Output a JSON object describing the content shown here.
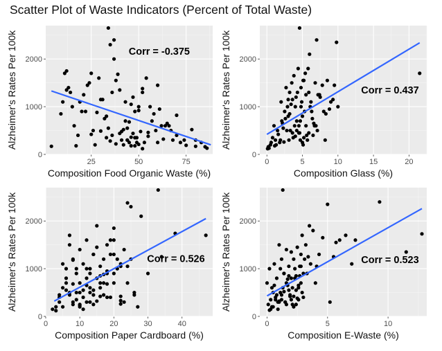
{
  "title": "Scatter Plot of Waste Indicators (Percent of Total Waste)",
  "chart_data": [
    {
      "type": "scatter",
      "xlabel": "Composition Food Organic Waste (%)",
      "ylabel": "Alzheimer's Rates Per 100k",
      "annotation": "Corr = -0.375",
      "xlim": [
        1,
        89
      ],
      "ylim": [
        0,
        2700
      ],
      "xticks": [
        25,
        50,
        75
      ],
      "yticks": [
        0,
        1000,
        2000
      ],
      "grid": true,
      "fit": {
        "x": [
          4,
          88
        ],
        "y": [
          1330,
          200
        ],
        "color": "#3366ff"
      },
      "x": [
        4,
        10,
        12,
        13,
        14,
        15,
        17,
        19,
        21,
        22,
        23,
        25,
        26,
        27,
        29,
        31,
        33,
        34,
        35,
        36,
        37,
        38,
        40,
        41,
        42,
        43,
        44,
        45,
        46,
        47,
        48,
        49,
        50,
        52,
        54,
        57,
        60,
        62,
        65,
        68,
        72,
        75,
        78,
        80,
        83,
        86,
        9,
        11,
        16,
        18,
        24,
        28,
        30,
        32,
        34,
        36,
        38,
        39,
        41,
        43,
        44,
        45,
        46,
        47,
        48,
        49,
        50,
        51,
        52,
        53,
        55,
        56,
        58,
        59,
        61,
        63,
        66,
        70,
        12,
        20,
        25,
        30,
        33,
        35,
        37,
        40,
        42,
        44,
        46,
        48,
        50,
        52,
        55,
        60,
        64,
        67,
        70,
        74,
        80,
        85
      ],
      "y": [
        170,
        1100,
        1750,
        1400,
        1300,
        1000,
        180,
        1100,
        1250,
        900,
        1450,
        1700,
        500,
        200,
        1600,
        1150,
        800,
        2650,
        2300,
        400,
        2400,
        1550,
        1350,
        300,
        200,
        700,
        550,
        250,
        1050,
        1200,
        900,
        350,
        1000,
        1300,
        1600,
        700,
        1450,
        600,
        650,
        300,
        250,
        190,
        520,
        300,
        250,
        130,
        850,
        1700,
        600,
        400,
        1500,
        880,
        1150,
        750,
        550,
        1300,
        220,
        1680,
        480,
        1100,
        300,
        680,
        360,
        440,
        180,
        250,
        920,
        480,
        1380,
        250,
        460,
        1000,
        850,
        500,
        950,
        320,
        600,
        820,
        1350,
        900,
        420,
        490,
        350,
        280,
        2000,
        440,
        520,
        300,
        180,
        350,
        210,
        120,
        380,
        250,
        600,
        500,
        400,
        300,
        170,
        160
      ]
    },
    {
      "type": "scatter",
      "xlabel": "Composition Glass (%)",
      "ylabel": "Alzheimer's Rates Per 100k",
      "annotation": "Corr = 0.437",
      "xlim": [
        -1,
        22.5
      ],
      "ylim": [
        0,
        2700
      ],
      "xticks": [
        0,
        5,
        10,
        15,
        20
      ],
      "yticks": [
        0,
        1000,
        2000
      ],
      "grid": true,
      "fit": {
        "x": [
          0,
          21.5
        ],
        "y": [
          420,
          2340
        ],
        "color": "#3366ff"
      },
      "x": [
        0.1,
        0.2,
        0.5,
        0.8,
        1.0,
        1.2,
        1.5,
        1.8,
        2.0,
        2.2,
        2.5,
        2.7,
        3.0,
        3.2,
        3.3,
        3.5,
        3.7,
        3.8,
        4.0,
        4.1,
        4.2,
        4.4,
        4.5,
        4.6,
        4.7,
        4.8,
        5.0,
        5.1,
        5.2,
        5.4,
        5.5,
        5.7,
        5.9,
        6.0,
        6.3,
        6.5,
        6.8,
        7.0,
        7.5,
        8.0,
        8.5,
        9.0,
        9.8,
        10.0,
        21.5,
        0.3,
        1.1,
        1.6,
        2.1,
        2.4,
        2.9,
        3.1,
        3.6,
        3.9,
        4.3,
        4.9,
        5.3,
        5.6,
        6.1,
        6.6,
        7.2,
        7.8,
        8.2,
        9.3,
        1.3,
        2.6,
        3.4,
        4.6,
        5.0,
        5.8,
        6.2,
        6.9,
        7.4,
        8.8,
        9.5,
        0.6,
        1.9,
        2.8,
        3.2,
        4.0,
        4.8,
        5.5,
        6.4,
        7.1,
        8.3,
        3.0,
        3.6,
        4.2,
        4.7,
        5.2,
        5.9,
        6.7,
        2.3,
        4.5,
        5.1
      ],
      "y": [
        120,
        160,
        200,
        350,
        600,
        300,
        500,
        250,
        1100,
        650,
        900,
        1400,
        800,
        1300,
        500,
        1500,
        350,
        1650,
        1000,
        1200,
        700,
        1800,
        450,
        2650,
        300,
        1400,
        800,
        200,
        1550,
        1700,
        600,
        300,
        1300,
        2100,
        900,
        400,
        1500,
        2400,
        1200,
        900,
        1550,
        1100,
        2350,
        1000,
        1700,
        130,
        180,
        420,
        700,
        260,
        1000,
        300,
        1150,
        600,
        1300,
        1100,
        900,
        400,
        1000,
        650,
        1250,
        1450,
        300,
        1150,
        200,
        750,
        1050,
        450,
        250,
        1800,
        1100,
        600,
        1250,
        950,
        1450,
        250,
        300,
        500,
        850,
        380,
        1000,
        1250,
        750,
        500,
        850,
        1150,
        450,
        500,
        700,
        350,
        450,
        600,
        550,
        600,
        1550
      ]
    },
    {
      "type": "scatter",
      "xlabel": "Composition Paper Cardboard (%)",
      "ylabel": "Alzheimer's Rates Per 100k",
      "annotation": "Corr = 0.526",
      "xlim": [
        0,
        49
      ],
      "ylim": [
        0,
        2700
      ],
      "xticks": [
        0,
        10,
        20,
        30,
        40
      ],
      "yticks": [
        0,
        1000,
        2000
      ],
      "grid": true,
      "fit": {
        "x": [
          2.5,
          47
        ],
        "y": [
          320,
          2050
        ],
        "color": "#3366ff"
      },
      "x": [
        2,
        3,
        4,
        5,
        5,
        6,
        7,
        7,
        8,
        8,
        9,
        9,
        10,
        10,
        10,
        11,
        11,
        12,
        12,
        13,
        13,
        13,
        14,
        14,
        15,
        15,
        16,
        16,
        17,
        17,
        18,
        18,
        19,
        19,
        20,
        20,
        21,
        22,
        22,
        23,
        24,
        25,
        26,
        27,
        28,
        30,
        33,
        34,
        38,
        47,
        3,
        4,
        5,
        6,
        7,
        8,
        9,
        10,
        11,
        12,
        13,
        14,
        15,
        16,
        17,
        18,
        19,
        20,
        21,
        22,
        23,
        24,
        25,
        26,
        6,
        8,
        10,
        12,
        14,
        16,
        18,
        20,
        22,
        24,
        4,
        6,
        8,
        10,
        12,
        14,
        16,
        18,
        20,
        22,
        9,
        11,
        13,
        15,
        17,
        7
      ],
      "y": [
        150,
        200,
        300,
        1100,
        600,
        800,
        450,
        1500,
        1200,
        250,
        1000,
        900,
        700,
        200,
        1400,
        1100,
        400,
        1600,
        300,
        1000,
        900,
        500,
        1300,
        250,
        800,
        1900,
        1050,
        600,
        450,
        1200,
        950,
        1500,
        400,
        1600,
        900,
        700,
        1200,
        1050,
        1100,
        300,
        2380,
        2300,
        500,
        200,
        2100,
        900,
        2650,
        1250,
        1740,
        1700,
        120,
        450,
        200,
        700,
        500,
        300,
        350,
        250,
        150,
        800,
        600,
        450,
        320,
        700,
        880,
        400,
        1300,
        1600,
        1000,
        260,
        1400,
        1050,
        1200,
        450,
        550,
        680,
        230,
        1000,
        1300,
        420,
        900,
        1850,
        330,
        700,
        400,
        1000,
        1180,
        500,
        650,
        550,
        850,
        680,
        1300,
        420,
        500,
        550,
        300,
        1450,
        700,
        1700
      ]
    },
    {
      "type": "scatter",
      "xlabel": "Composition E-Waste (%)",
      "ylabel": "Alzheimer's Rates Per 100k",
      "annotation": "Corr = 0.523",
      "xlim": [
        -0.6,
        13.2
      ],
      "ylim": [
        0,
        2700
      ],
      "xticks": [
        0,
        5,
        10
      ],
      "yticks": [
        0,
        1000,
        2000
      ],
      "grid": true,
      "fit": {
        "x": [
          0,
          12.8
        ],
        "y": [
          430,
          2260
        ],
        "color": "#3366ff"
      },
      "x": [
        0.0,
        0.1,
        0.2,
        0.3,
        0.4,
        0.5,
        0.6,
        0.7,
        0.8,
        0.9,
        1.0,
        1.1,
        1.2,
        1.3,
        1.4,
        1.5,
        1.6,
        1.7,
        1.8,
        1.9,
        2.0,
        2.1,
        2.2,
        2.3,
        2.4,
        2.5,
        2.6,
        2.7,
        2.8,
        2.9,
        3.0,
        3.2,
        3.4,
        3.6,
        3.8,
        4.0,
        4.3,
        4.6,
        5.0,
        5.5,
        6.0,
        6.5,
        7.0,
        7.3,
        9.3,
        11.5,
        12.8,
        0.2,
        0.4,
        0.6,
        0.8,
        1.0,
        1.2,
        1.4,
        1.6,
        1.8,
        2.0,
        2.2,
        2.4,
        2.6,
        2.8,
        3.0,
        3.3,
        0.3,
        0.5,
        0.7,
        0.9,
        1.1,
        1.3,
        1.5,
        1.7,
        1.9,
        2.1,
        2.3,
        2.5,
        2.7,
        2.9,
        3.1,
        1.2,
        1.6,
        2.0,
        2.4,
        2.8,
        1.0,
        1.4,
        1.8,
        2.2,
        2.6,
        3.5,
        4.1,
        5.2,
        5.7
      ],
      "y": [
        700,
        250,
        1000,
        350,
        600,
        200,
        1100,
        400,
        800,
        300,
        1500,
        500,
        1200,
        2650,
        900,
        300,
        1400,
        650,
        1050,
        450,
        1350,
        250,
        1200,
        800,
        550,
        1450,
        350,
        1050,
        700,
        1700,
        400,
        1500,
        1250,
        1100,
        1800,
        700,
        1300,
        1650,
        2350,
        1250,
        1600,
        1700,
        1100,
        1600,
        2400,
        1350,
        1730,
        130,
        200,
        650,
        450,
        320,
        350,
        900,
        250,
        550,
        800,
        420,
        250,
        600,
        1050,
        900,
        900,
        150,
        500,
        350,
        150,
        1000,
        600,
        300,
        780,
        420,
        600,
        1000,
        380,
        850,
        500,
        1200,
        450,
        700,
        350,
        850,
        1300,
        300,
        520,
        850,
        200,
        650,
        1900,
        1050,
        300,
        1550
      ]
    }
  ]
}
